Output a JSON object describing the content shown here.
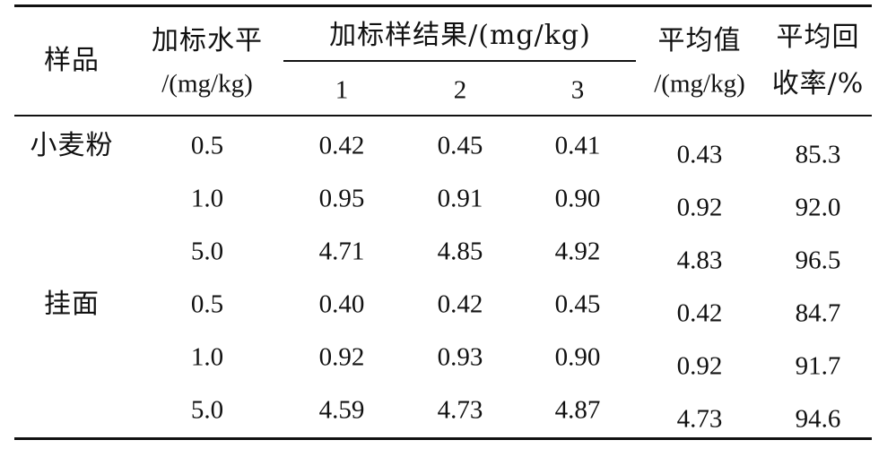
{
  "header": {
    "sample": "样品",
    "spike_level_line1": "加标水平",
    "spike_level_line2": "/(mg/kg)",
    "results_group": "加标样结果/(mg/kg)",
    "replicates": [
      "1",
      "2",
      "3"
    ],
    "mean_line1": "平均值",
    "mean_line2": "/(mg/kg)",
    "recovery_line1": "平均回",
    "recovery_line2": "收率/%"
  },
  "rows": [
    {
      "sample": "小麦粉",
      "level": "0.5",
      "r1": "0.42",
      "r2": "0.45",
      "r3": "0.41",
      "mean": "0.43",
      "recovery": "85.3"
    },
    {
      "sample": "",
      "level": "1.0",
      "r1": "0.95",
      "r2": "0.91",
      "r3": "0.90",
      "mean": "0.92",
      "recovery": "92.0"
    },
    {
      "sample": "",
      "level": "5.0",
      "r1": "4.71",
      "r2": "4.85",
      "r3": "4.92",
      "mean": "4.83",
      "recovery": "96.5"
    },
    {
      "sample": "挂面",
      "level": "0.5",
      "r1": "0.40",
      "r2": "0.42",
      "r3": "0.45",
      "mean": "0.42",
      "recovery": "84.7"
    },
    {
      "sample": "",
      "level": "1.0",
      "r1": "0.92",
      "r2": "0.93",
      "r3": "0.90",
      "mean": "0.92",
      "recovery": "91.7"
    },
    {
      "sample": "",
      "level": "5.0",
      "r1": "4.59",
      "r2": "4.73",
      "r3": "4.87",
      "mean": "4.73",
      "recovery": "94.6"
    }
  ]
}
